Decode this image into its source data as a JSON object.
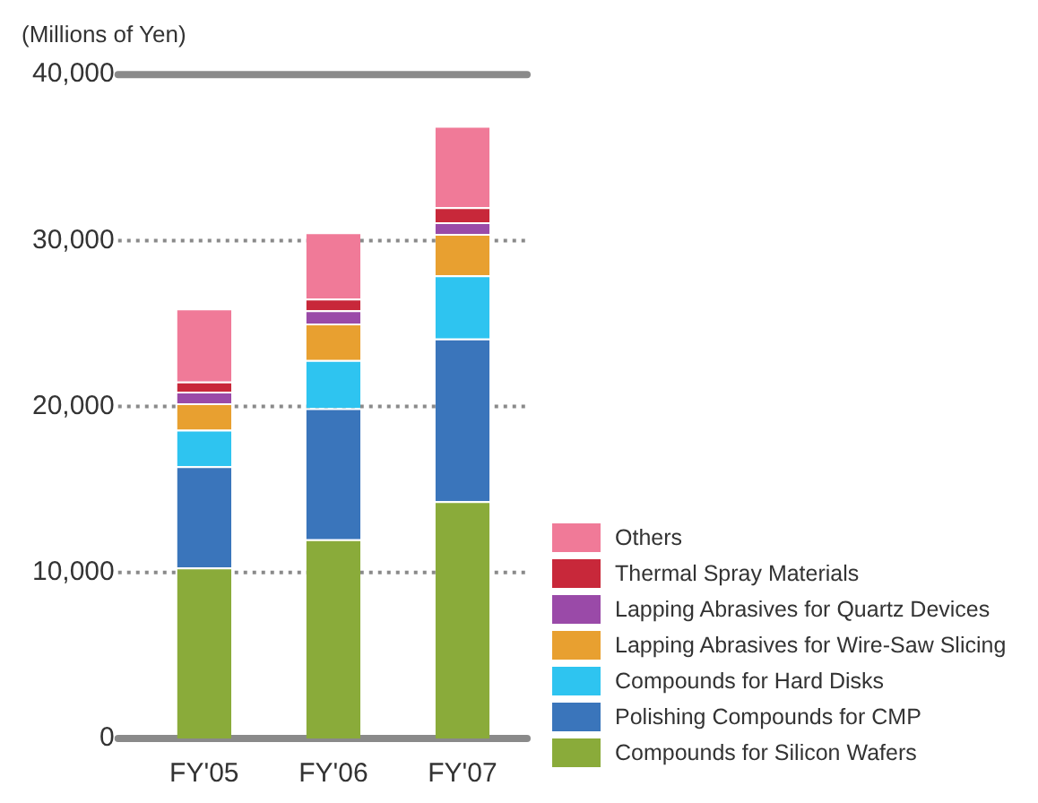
{
  "chart_data": {
    "type": "bar",
    "stacked": true,
    "ylabel": "(Millions of Yen)",
    "categories": [
      "FY'05",
      "FY'06",
      "FY'07"
    ],
    "series": [
      {
        "name": "Compounds for Silicon Wafers",
        "color": "#8aab3a",
        "values": [
          10300,
          12000,
          14300
        ]
      },
      {
        "name": "Polishing Compounds for CMP",
        "color": "#3a75bb",
        "values": [
          6100,
          7900,
          9800
        ]
      },
      {
        "name": "Compounds for Hard Disks",
        "color": "#2ec4f0",
        "values": [
          2200,
          2900,
          3800
        ]
      },
      {
        "name": "Lapping Abrasives for Wire-Saw Slicing",
        "color": "#e8a030",
        "values": [
          1600,
          2200,
          2500
        ]
      },
      {
        "name": "Lapping Abrasives for Quartz Devices",
        "color": "#9a4aa8",
        "values": [
          700,
          800,
          700
        ]
      },
      {
        "name": "Thermal Spray Materials",
        "color": "#c8283a",
        "values": [
          600,
          700,
          900
        ]
      },
      {
        "name": "Others",
        "color": "#f07a98",
        "values": [
          4400,
          4000,
          4900
        ]
      }
    ],
    "ylim": [
      0,
      40000
    ],
    "yticks": [
      0,
      {
        "value": 10000,
        "label": "10,000"
      },
      {
        "value": 20000,
        "label": "20,000"
      },
      {
        "value": 30000,
        "label": "30,000"
      },
      {
        "value": 40000,
        "label": "40,000"
      }
    ],
    "grid": "y",
    "legend": "bottom right"
  }
}
